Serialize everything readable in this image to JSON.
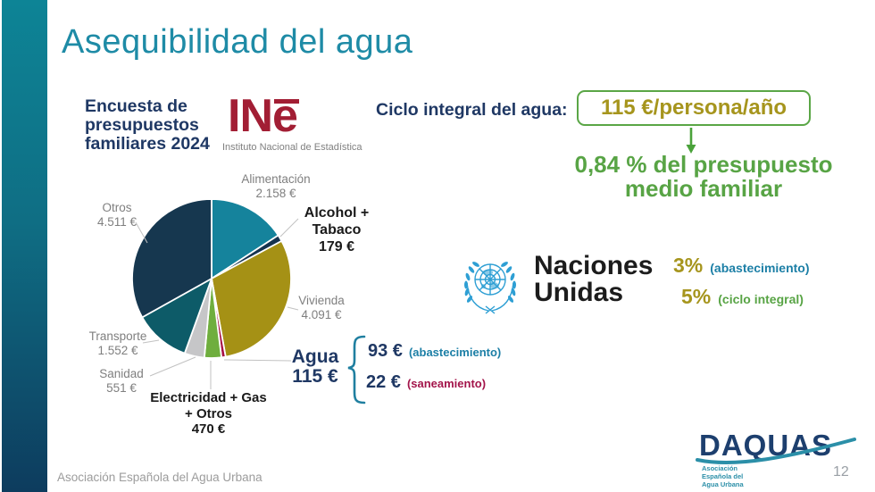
{
  "slide": {
    "title": "Asequibilidad del agua",
    "footer": "Asociación Española del Agua Urbana",
    "page_number": "12"
  },
  "colors": {
    "accent_teal": "#1e8ba6",
    "navy_text": "#1f3864",
    "olive_value": "#a6951d",
    "green_highlight": "#58a445",
    "crimson": "#a3144a",
    "ine_red": "#a21e34",
    "un_blue": "#2e9fd4",
    "label_gray": "#7f7f7f"
  },
  "survey": {
    "heading": "Encuesta de presupuestos familiares 2024",
    "ine": {
      "logo_text_in": "IN",
      "logo_text_e": "e",
      "caption": "Instituto Nacional de Estadística"
    }
  },
  "ciclo": {
    "label": "Ciclo integral del agua:",
    "highlight": "115 €/persona/año",
    "note_line1": "0,84 % del presupuesto",
    "note_line2": "medio familiar"
  },
  "un": {
    "line1": "Naciones",
    "line2": "Unidas",
    "stats": [
      {
        "value": "3%",
        "label": "(abastecimiento)"
      },
      {
        "value": "5%",
        "label": "(ciclo integral)"
      }
    ]
  },
  "agua_detail": {
    "items": [
      {
        "value": "93 €",
        "label": "(abastecimiento)"
      },
      {
        "value": "22 €",
        "label": "(saneamiento)"
      }
    ]
  },
  "daquas": {
    "logo_text": "DAQUAS",
    "sub_lines": [
      "Asociación",
      "Española del",
      "Agua Urbana"
    ]
  },
  "chart_data": {
    "type": "pie",
    "title": "Encuesta de presupuestos familiares 2024",
    "unit": "€",
    "start_angle_deg": 0,
    "direction": "clockwise",
    "slices": [
      {
        "label": "Alimentación",
        "display": "2.158 €",
        "value": 2158,
        "color": "#15839c"
      },
      {
        "label": "Alcohol + Tabaco",
        "display": "179 €",
        "value": 179,
        "color": "#16334f"
      },
      {
        "label": "Vivienda",
        "display": "4.091 €",
        "value": 4091,
        "color": "#a59115"
      },
      {
        "label": "Agua",
        "display": "115 €",
        "value": 115,
        "color": "#a60e44"
      },
      {
        "label": "Electricidad + Gas + Otros",
        "display": "470 €",
        "value": 470,
        "color": "#6fae3e"
      },
      {
        "label": "Sanidad",
        "display": "551 €",
        "value": 551,
        "color": "#c6c6c8"
      },
      {
        "label": "Transporte",
        "display": "1.552 €",
        "value": 1552,
        "color": "#0d5b68"
      },
      {
        "label": "Otros",
        "display": "4.511 €",
        "value": 4511,
        "color": "#16374f"
      }
    ]
  }
}
